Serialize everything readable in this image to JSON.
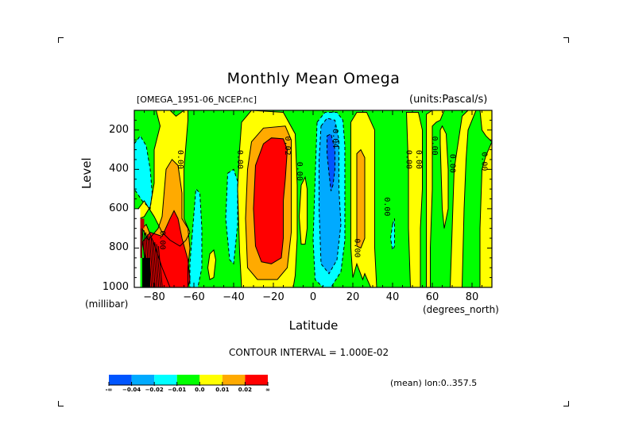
{
  "chart_data": {
    "type": "heatmap",
    "subtype": "filled-contour",
    "title": "Monthly Mean Omega",
    "subtitle_left": "[OMEGA_1951-06_NCEP.nc]",
    "subtitle_right": "(units:Pascal/s)",
    "xlabel": "Latitude",
    "xunits": "(degrees_north)",
    "ylabel": "Level",
    "yunits": "(millibar)",
    "xlim": [
      -90,
      90
    ],
    "ylim": [
      1000,
      100
    ],
    "x_ticks": [
      -80,
      -60,
      -40,
      -20,
      0,
      20,
      40,
      60,
      80
    ],
    "x_tick_labels": [
      "−80",
      "−60",
      "−40",
      "−20",
      "0",
      "20",
      "40",
      "60",
      "80"
    ],
    "y_ticks": [
      200,
      400,
      600,
      800,
      1000
    ],
    "y_tick_labels": [
      "200",
      "400",
      "600",
      "800",
      "1000"
    ],
    "contour_interval_text": "CONTOUR INTERVAL = 1.000E-02",
    "footer_text": "(mean) lon:0..357.5",
    "contour_labels": [
      {
        "value": "0.00",
        "lat": -68,
        "lev": 350
      },
      {
        "value": "0.00",
        "lat": -77,
        "lev": 760
      },
      {
        "value": "0.00",
        "lat": -38,
        "lev": 350
      },
      {
        "value": "0.02",
        "lat": -14,
        "lev": 280
      },
      {
        "value": "0.00",
        "lat": -8,
        "lev": 410
      },
      {
        "value": "-0.04",
        "lat": 10,
        "lev": 230
      },
      {
        "value": "0.00",
        "lat": 21,
        "lev": 800
      },
      {
        "value": "0.00",
        "lat": 36,
        "lev": 590
      },
      {
        "value": "0.00",
        "lat": 47,
        "lev": 350
      },
      {
        "value": "0.00",
        "lat": 52,
        "lev": 350
      },
      {
        "value": "0.00",
        "lat": 60,
        "lev": 280
      },
      {
        "value": "0.00",
        "lat": 69,
        "lev": 370
      },
      {
        "value": "0.00",
        "lat": 85,
        "lev": 360
      }
    ],
    "colorbar": {
      "colors": [
        "#0055ff",
        "#00aaff",
        "#00ffff",
        "#00ff00",
        "#ffff00",
        "#ffaa00",
        "#ff0000"
      ],
      "boundary_labels": [
        "-∞",
        "−0.04",
        "−0.02",
        "−0.01",
        "0.0",
        "0.01",
        "0.02",
        "∞"
      ]
    },
    "regions": [
      {
        "name": "sh-polar-cyan-upper",
        "level": "-0.01",
        "color_index": 2,
        "pts": [
          [
            -90,
            270
          ],
          [
            -87,
            230
          ],
          [
            -84,
            280
          ],
          [
            -82,
            400
          ],
          [
            -81,
            520
          ],
          [
            -82,
            600
          ],
          [
            -86,
            560
          ],
          [
            -90,
            500
          ]
        ]
      },
      {
        "name": "sh-polar-yellow",
        "level": "0.00",
        "color_index": 4,
        "pts": [
          [
            -79,
            100
          ],
          [
            -72,
            100
          ],
          [
            -69,
            130
          ],
          [
            -65,
            100
          ],
          [
            -63,
            100
          ],
          [
            -63,
            150
          ],
          [
            -65,
            400
          ],
          [
            -65,
            650
          ],
          [
            -62,
            720
          ],
          [
            -64,
            760
          ],
          [
            -67,
            790
          ],
          [
            -72,
            760
          ],
          [
            -76,
            720
          ],
          [
            -80,
            640
          ],
          [
            -85,
            560
          ],
          [
            -88,
            600
          ],
          [
            -90,
            620
          ],
          [
            -90,
            660
          ],
          [
            -85,
            640
          ],
          [
            -82,
            590
          ],
          [
            -80,
            470
          ],
          [
            -80,
            300
          ],
          [
            -77,
            180
          ]
        ]
      },
      {
        "name": "sh-polar-orange",
        "level": "0.01",
        "color_index": 5,
        "pts": [
          [
            -74,
            400
          ],
          [
            -71,
            350
          ],
          [
            -68,
            380
          ],
          [
            -66,
            520
          ],
          [
            -66,
            650
          ],
          [
            -63,
            700
          ],
          [
            -62,
            800
          ],
          [
            -63,
            900
          ],
          [
            -63,
            1000
          ],
          [
            -72,
            1000
          ],
          [
            -76,
            900
          ],
          [
            -80,
            780
          ],
          [
            -84,
            680
          ],
          [
            -86,
            700
          ],
          [
            -83,
            760
          ],
          [
            -78,
            700
          ],
          [
            -76,
            640
          ],
          [
            -75,
            520
          ]
        ]
      },
      {
        "name": "sh-polar-red",
        "level": "0.02",
        "color_index": 6,
        "pts": [
          [
            -72,
            650
          ],
          [
            -70,
            610
          ],
          [
            -68,
            650
          ],
          [
            -66,
            750
          ],
          [
            -63,
            860
          ],
          [
            -62,
            960
          ],
          [
            -63,
            1000
          ],
          [
            -82,
            1000
          ],
          [
            -84,
            880
          ],
          [
            -86,
            770
          ],
          [
            -82,
            720
          ],
          [
            -76,
            740
          ]
        ]
      },
      {
        "name": "sh-midlat-cyan-1",
        "level": "-0.01",
        "color_index": 2,
        "pts": [
          [
            -61,
            750
          ],
          [
            -59,
            500
          ],
          [
            -57,
            520
          ],
          [
            -56,
            700
          ],
          [
            -56,
            900
          ],
          [
            -58,
            1000
          ],
          [
            -62,
            1000
          ],
          [
            -62,
            880
          ]
        ]
      },
      {
        "name": "sh-midlat-yellow-small",
        "level": "0.00",
        "color_index": 4,
        "pts": [
          [
            -52,
            830
          ],
          [
            -50,
            810
          ],
          [
            -49,
            860
          ],
          [
            -50,
            950
          ],
          [
            -52,
            960
          ],
          [
            -53,
            900
          ]
        ]
      },
      {
        "name": "sh-midlat-cyan-2",
        "level": "-0.01",
        "color_index": 2,
        "pts": [
          [
            -43,
            420
          ],
          [
            -40,
            400
          ],
          [
            -38,
            460
          ],
          [
            -38,
            680
          ],
          [
            -40,
            880
          ],
          [
            -42,
            860
          ],
          [
            -44,
            650
          ]
        ]
      },
      {
        "name": "sh-subtrop-yellow",
        "level": "0.00",
        "color_index": 4,
        "pts": [
          [
            -36,
            160
          ],
          [
            -31,
            100
          ],
          [
            -15,
            110
          ],
          [
            -9,
            220
          ],
          [
            -8,
            480
          ],
          [
            -8,
            750
          ],
          [
            -9,
            940
          ],
          [
            -10,
            1000
          ],
          [
            -36,
            1000
          ],
          [
            -37,
            820
          ],
          [
            -38,
            500
          ],
          [
            -37,
            300
          ]
        ]
      },
      {
        "name": "sh-subtrop-orange",
        "level": "0.01",
        "color_index": 5,
        "pts": [
          [
            -31,
            260
          ],
          [
            -25,
            190
          ],
          [
            -14,
            180
          ],
          [
            -11,
            250
          ],
          [
            -11,
            500
          ],
          [
            -11,
            720
          ],
          [
            -13,
            900
          ],
          [
            -18,
            960
          ],
          [
            -28,
            960
          ],
          [
            -33,
            900
          ],
          [
            -34,
            650
          ],
          [
            -33,
            400
          ]
        ]
      },
      {
        "name": "sh-subtrop-red",
        "level": "0.02",
        "color_index": 6,
        "pts": [
          [
            -25,
            270
          ],
          [
            -21,
            240
          ],
          [
            -15,
            245
          ],
          [
            -13,
            300
          ],
          [
            -14,
            450
          ],
          [
            -15,
            560
          ],
          [
            -15,
            750
          ],
          [
            -16,
            850
          ],
          [
            -21,
            880
          ],
          [
            -26,
            870
          ],
          [
            -29,
            790
          ],
          [
            -30,
            600
          ],
          [
            -29,
            380
          ]
        ]
      },
      {
        "name": "eq-west-yellow",
        "level": "0.00",
        "color_index": 4,
        "pts": [
          [
            -6,
            480
          ],
          [
            -4,
            440
          ],
          [
            -3,
            500
          ],
          [
            -3,
            700
          ],
          [
            -4,
            780
          ],
          [
            -6,
            780
          ],
          [
            -7,
            640
          ]
        ]
      },
      {
        "name": "eq-cyan",
        "level": "-0.01",
        "color_index": 2,
        "pts": [
          [
            2,
            160
          ],
          [
            6,
            110
          ],
          [
            12,
            110
          ],
          [
            15,
            150
          ],
          [
            16,
            280
          ],
          [
            16,
            520
          ],
          [
            16,
            760
          ],
          [
            14,
            920
          ],
          [
            9,
            1000
          ],
          [
            5,
            1000
          ],
          [
            1,
            960
          ],
          [
            0,
            760
          ],
          [
            1,
            450
          ]
        ]
      },
      {
        "name": "eq-lightblue",
        "level": "-0.02",
        "color_index": 1,
        "pts": [
          [
            4,
            180
          ],
          [
            7,
            140
          ],
          [
            11,
            150
          ],
          [
            13,
            250
          ],
          [
            13,
            500
          ],
          [
            14,
            680
          ],
          [
            12,
            860
          ],
          [
            8,
            930
          ],
          [
            4,
            880
          ],
          [
            3,
            600
          ],
          [
            3,
            350
          ]
        ]
      },
      {
        "name": "eq-blue",
        "level": "-0.04",
        "color_index": 0,
        "pts": [
          [
            7,
            230
          ],
          [
            9,
            220
          ],
          [
            11,
            300
          ],
          [
            11,
            400
          ],
          [
            10,
            480
          ],
          [
            9,
            510
          ],
          [
            8,
            420
          ],
          [
            7,
            320
          ]
        ]
      },
      {
        "name": "nh-subtrop-yellow",
        "level": "0.00",
        "color_index": 4,
        "pts": [
          [
            19,
            160
          ],
          [
            22,
            110
          ],
          [
            27,
            110
          ],
          [
            31,
            200
          ],
          [
            31,
            500
          ],
          [
            31,
            800
          ],
          [
            32,
            1000
          ],
          [
            29,
            1000
          ],
          [
            26,
            930
          ],
          [
            25,
            960
          ],
          [
            22,
            880
          ],
          [
            20,
            950
          ],
          [
            19,
            800
          ],
          [
            19,
            500
          ]
        ]
      },
      {
        "name": "nh-subtrop-orange",
        "level": "0.01",
        "color_index": 5,
        "pts": [
          [
            22,
            320
          ],
          [
            24,
            300
          ],
          [
            26,
            340
          ],
          [
            26,
            560
          ],
          [
            26,
            750
          ],
          [
            24,
            800
          ],
          [
            22,
            790
          ],
          [
            22,
            560
          ]
        ]
      },
      {
        "name": "nh-midlat-cyan-small",
        "level": "-0.01",
        "color_index": 2,
        "pts": [
          [
            40,
            680
          ],
          [
            41,
            650
          ],
          [
            41,
            720
          ],
          [
            41,
            790
          ],
          [
            40,
            810
          ],
          [
            39,
            750
          ]
        ]
      },
      {
        "name": "nh-yellow-1",
        "level": "0.00",
        "color_index": 4,
        "pts": [
          [
            47,
            110
          ],
          [
            53,
            110
          ],
          [
            55,
            200
          ],
          [
            55,
            500
          ],
          [
            54,
            700
          ],
          [
            54,
            1000
          ],
          [
            49,
            1000
          ],
          [
            48,
            700
          ],
          [
            48,
            400
          ]
        ]
      },
      {
        "name": "nh-yellow-2",
        "level": "0.00",
        "color_index": 4,
        "pts": [
          [
            57,
            120
          ],
          [
            60,
            100
          ],
          [
            66,
            100
          ],
          [
            64,
            150
          ],
          [
            62,
            160
          ],
          [
            60,
            180
          ],
          [
            60,
            300
          ],
          [
            60,
            500
          ],
          [
            59,
            800
          ],
          [
            59,
            1000
          ],
          [
            57,
            1000
          ],
          [
            57,
            600
          ]
        ]
      },
      {
        "name": "nh-yellow-3",
        "level": "0.00",
        "color_index": 4,
        "pts": [
          [
            64,
            270
          ],
          [
            64,
            200
          ],
          [
            65,
            180
          ],
          [
            67,
            220
          ],
          [
            68,
            400
          ],
          [
            68,
            600
          ],
          [
            66,
            700
          ],
          [
            65,
            600
          ]
        ]
      },
      {
        "name": "nh-yellow-4",
        "level": "0.00",
        "color_index": 4,
        "pts": [
          [
            75,
            130
          ],
          [
            78,
            100
          ],
          [
            82,
            100
          ],
          [
            80,
            150
          ],
          [
            78,
            200
          ],
          [
            77,
            350
          ],
          [
            76,
            600
          ],
          [
            75,
            1000
          ],
          [
            69,
            1000
          ],
          [
            70,
            700
          ],
          [
            71,
            400
          ]
        ]
      },
      {
        "name": "nh-polar-yellow",
        "level": "0.00",
        "color_index": 4,
        "pts": [
          [
            84,
            100
          ],
          [
            90,
            100
          ],
          [
            90,
            1000
          ],
          [
            84,
            1000
          ],
          [
            84,
            700
          ],
          [
            85,
            400
          ],
          [
            87,
            330
          ],
          [
            90,
            260
          ],
          [
            87,
            230
          ],
          [
            85,
            200
          ]
        ]
      }
    ],
    "missing_region_note": "White (missing data) below ground near Antarctica (lat < -87, lev > 600mb)"
  }
}
